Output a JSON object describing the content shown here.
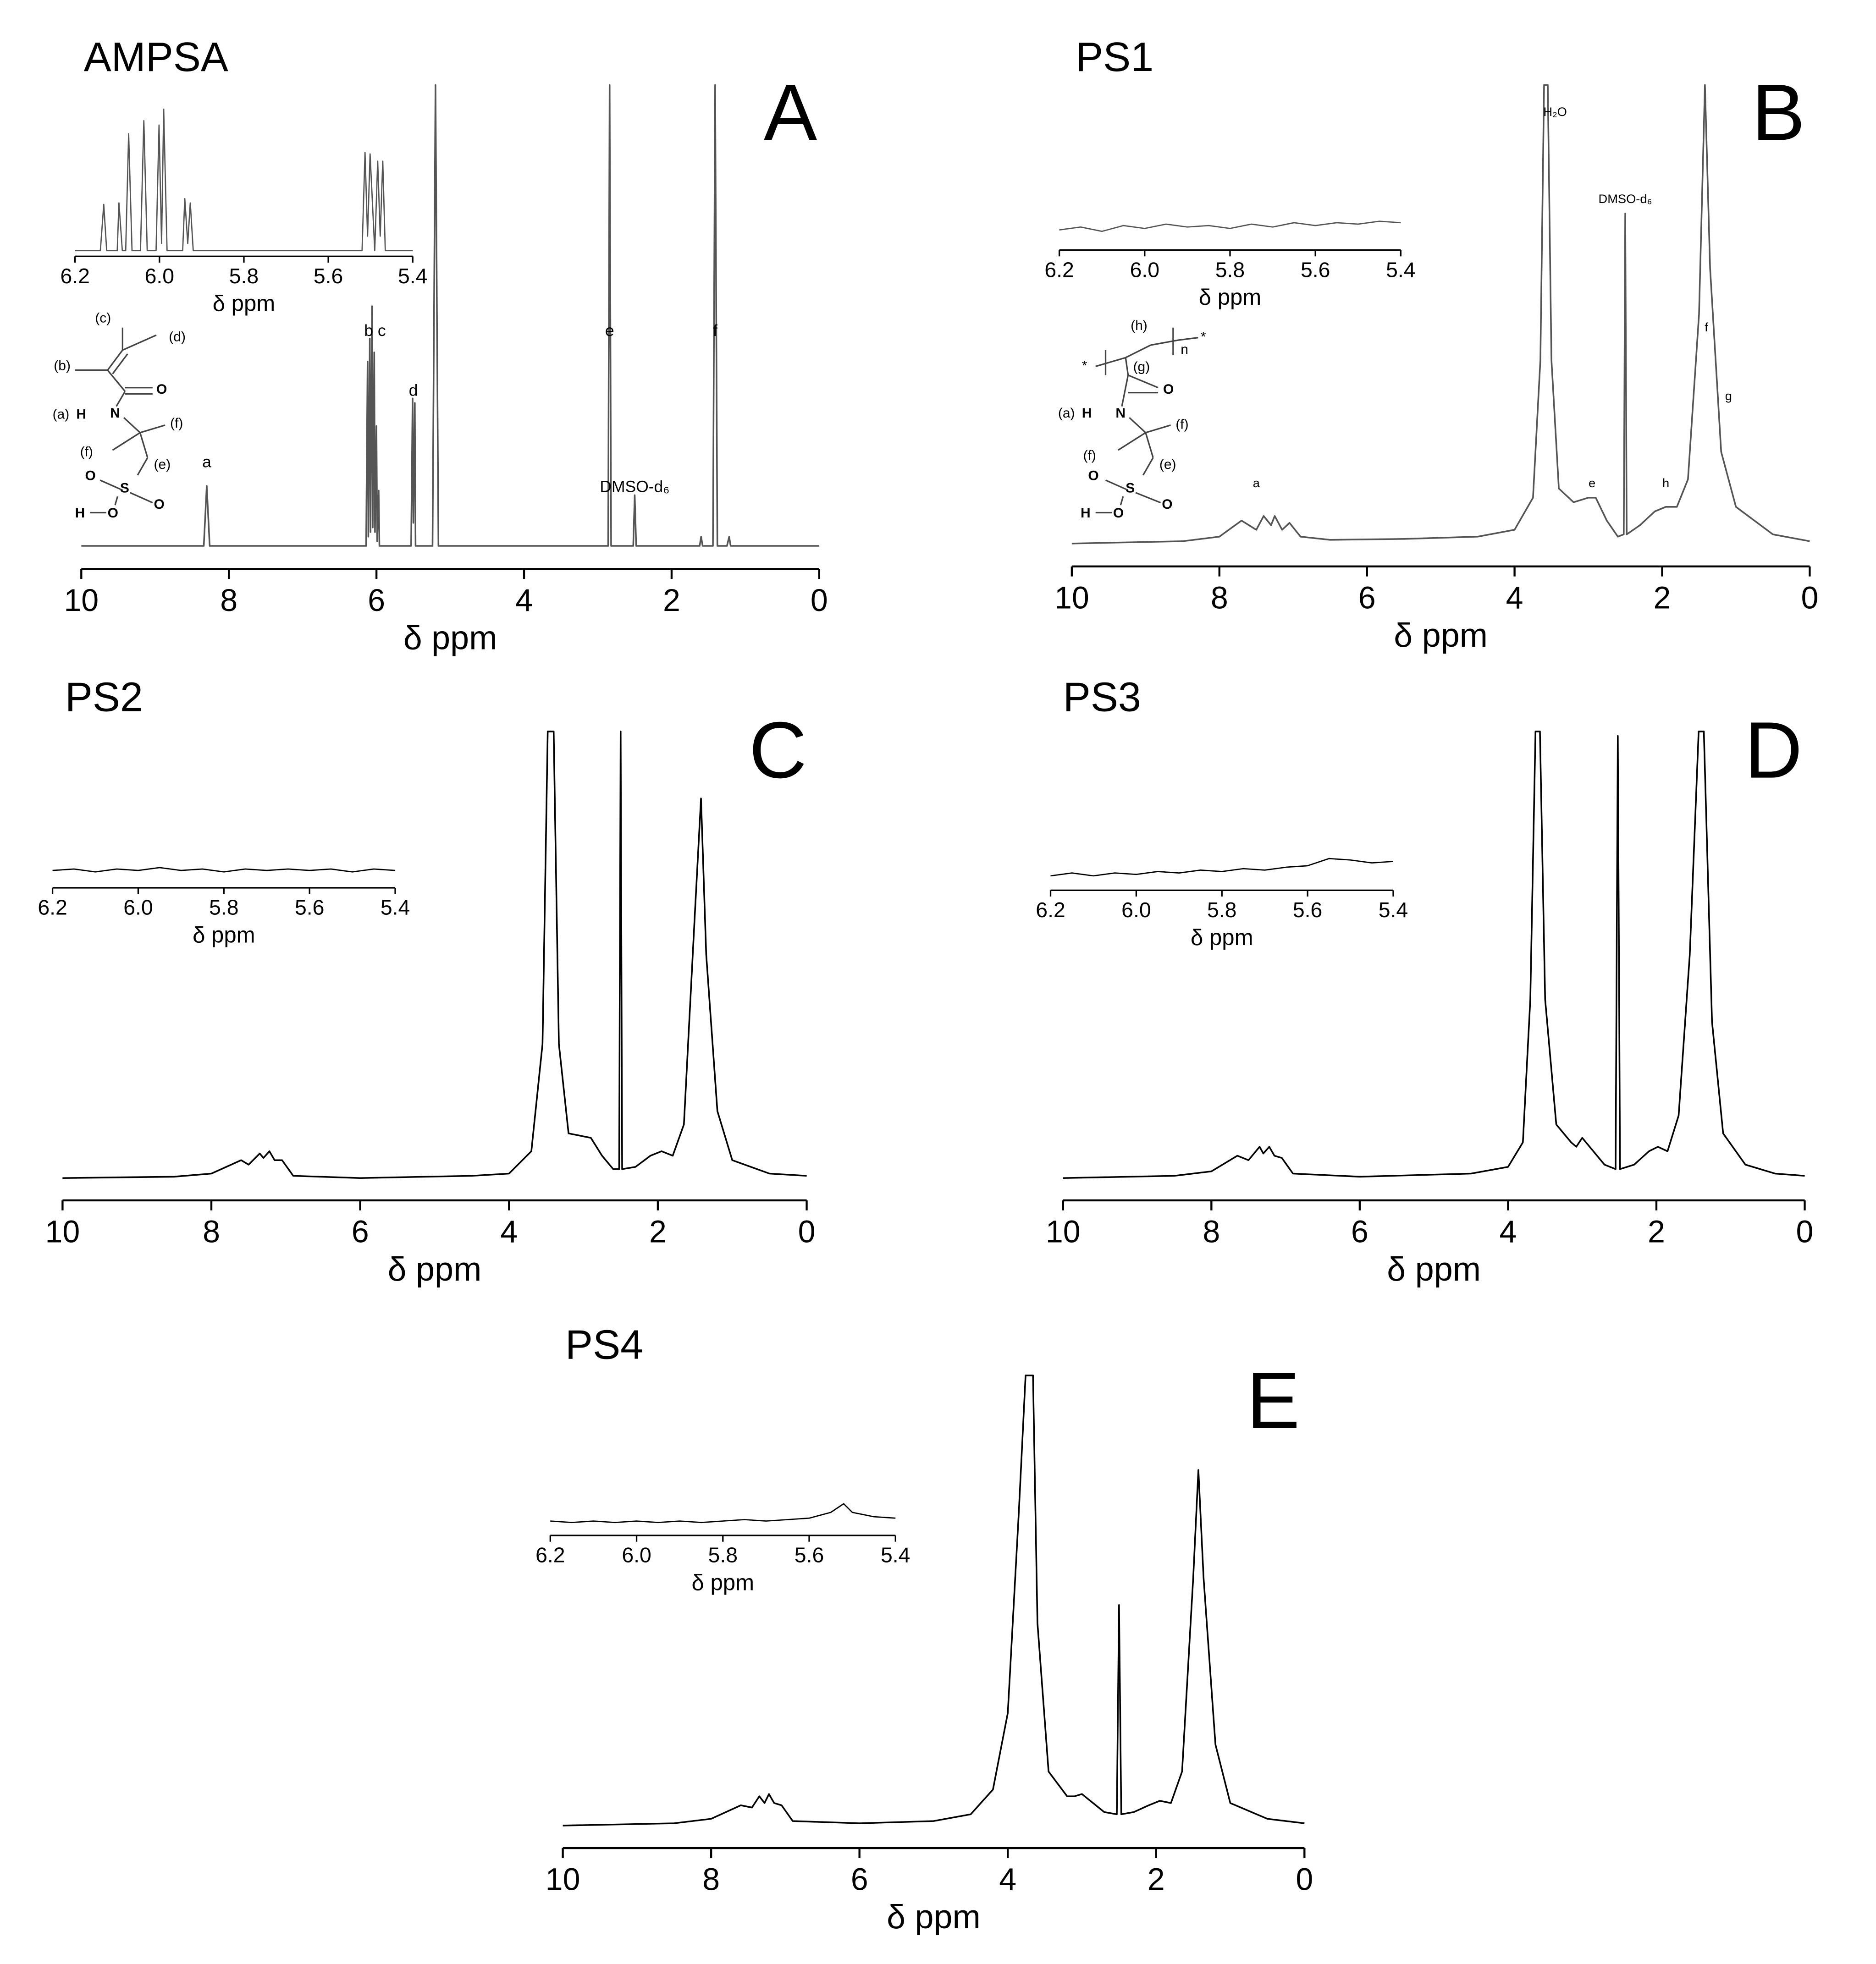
{
  "chart_data": [
    {
      "type": "line",
      "title": "AMPSA",
      "panel": "A",
      "color": "#555555",
      "xlabel": "δ ppm",
      "xlim": [
        10,
        0
      ],
      "xticks": [
        10,
        8,
        6,
        4,
        2,
        0
      ],
      "ylim": [
        -5,
        100
      ],
      "x": [
        10,
        8.34,
        8.3,
        8.26,
        6.14,
        6.12,
        6.11,
        6.09,
        6.08,
        6.06,
        6.05,
        6.03,
        6.02,
        6.0,
        5.99,
        5.97,
        5.96,
        5.53,
        5.51,
        5.5,
        5.48,
        5.47,
        5.24,
        5.2,
        5.16,
        2.86,
        2.84,
        2.82,
        2.52,
        2.5,
        2.48,
        1.62,
        1.6,
        1.58,
        1.44,
        1.41,
        1.38,
        1.25,
        1.22,
        1.2,
        0
      ],
      "values": [
        0,
        0,
        13,
        0,
        0,
        40,
        2,
        45,
        3,
        52,
        4,
        42,
        3,
        26,
        1,
        12,
        0,
        0,
        32,
        5,
        31,
        0,
        0,
        100,
        0,
        0,
        100,
        0,
        0,
        11,
        0,
        0,
        2,
        0,
        0,
        100,
        0,
        0,
        2,
        0,
        0
      ],
      "annotations": [
        {
          "text": "a",
          "x": 8.3,
          "y": 18
        },
        {
          "text": "b c",
          "x": 6.02,
          "y": 46.5
        },
        {
          "text": "d",
          "x": 5.5,
          "y": 33.5
        },
        {
          "text": "e",
          "x": 2.84,
          "y": 46.5
        },
        {
          "text": "f",
          "x": 1.41,
          "y": 46.5
        },
        {
          "text": "DMSO-d₆",
          "x": 2.5,
          "y": 12.6
        }
      ],
      "inset": {
        "xlabel": "δ ppm",
        "xlim": [
          6.2,
          5.4
        ],
        "xticks": [
          6.2,
          {
            "value": 6,
            "label": "6.0"
          },
          5.8,
          5.6,
          5.4
        ],
        "ylim": [
          -4,
          100
        ],
        "x": [
          6.2,
          6.14,
          6.132,
          6.125,
          6.1,
          6.096,
          6.088,
          6.08,
          6.073,
          6.065,
          6.045,
          6.037,
          6.029,
          6.008,
          6.001,
          5.995,
          5.99,
          5.982,
          5.945,
          5.94,
          5.933,
          5.927,
          5.92,
          5.52,
          5.513,
          5.507,
          5.501,
          5.49,
          5.483,
          5.477,
          5.471,
          5.465,
          5.4
        ],
        "values": [
          0,
          0,
          32,
          0,
          0,
          33,
          0,
          0,
          81,
          0,
          0,
          90,
          0,
          0,
          87,
          5,
          98,
          0,
          0,
          36,
          5,
          33,
          0,
          0,
          68,
          10,
          67,
          0,
          62,
          10,
          62,
          0,
          0
        ]
      },
      "structure": [
        "(c)",
        "(d)",
        "(b)",
        "O",
        "(a)",
        "H",
        "N",
        "(f)",
        "(f)",
        "(e)",
        "O",
        "S",
        "O",
        "H",
        "O"
      ]
    },
    {
      "type": "line",
      "title": "PS1",
      "panel": "B",
      "color": "#555555",
      "xlabel": "δ ppm",
      "xlim": [
        10,
        0
      ],
      "xticks": [
        10,
        8,
        6,
        4,
        2,
        0
      ],
      "ylim": [
        -5,
        100
      ],
      "x": [
        10,
        8.5,
        8,
        7.7,
        7.5,
        7.4,
        7.3,
        7.25,
        7.15,
        7.05,
        6.9,
        6.5,
        5.5,
        4.5,
        4,
        3.75,
        3.65,
        3.6,
        3.55,
        3.5,
        3.4,
        3.2,
        3.0,
        2.9,
        2.75,
        2.6,
        2.52,
        2.5,
        2.48,
        2.3,
        2.1,
        1.95,
        1.8,
        1.65,
        1.5,
        1.42,
        1.35,
        1.2,
        1,
        0.5,
        0
      ],
      "values": [
        0,
        0.5,
        1.5,
        5,
        3,
        6,
        4,
        6,
        3,
        4.5,
        1.5,
        0.8,
        1,
        1.5,
        3,
        10,
        40,
        100,
        100,
        40,
        12,
        9,
        10,
        10,
        5,
        1.5,
        2,
        72,
        2,
        4,
        7,
        8,
        8,
        14,
        50,
        100,
        60,
        20,
        8,
        2,
        0.5
      ],
      "annotations": [
        {
          "text": "H₂O",
          "x": 3.45,
          "y": 94
        },
        {
          "text": "DMSO-d₆",
          "x": 2.5,
          "y": 75
        },
        {
          "text": "a",
          "x": 7.5,
          "y": 13
        },
        {
          "text": "e",
          "x": 2.95,
          "y": 13
        },
        {
          "text": "h",
          "x": 1.95,
          "y": 13
        },
        {
          "text": "f",
          "x": 1.4,
          "y": 47
        },
        {
          "text": "g",
          "x": 1.1,
          "y": 32
        }
      ],
      "inset": {
        "xlabel": "δ ppm",
        "xlim": [
          6.2,
          5.4
        ],
        "xticks": [
          6.2,
          {
            "value": 6,
            "label": "6.0"
          },
          5.8,
          5.6,
          5.4
        ],
        "ylim": [
          -4,
          100
        ],
        "x": [
          6.2,
          6.15,
          6.1,
          6.05,
          6.0,
          5.95,
          5.9,
          5.85,
          5.8,
          5.75,
          5.7,
          5.65,
          5.6,
          5.55,
          5.5,
          5.45,
          5.4
        ],
        "values": [
          10,
          12,
          9,
          13,
          11,
          14,
          12,
          13,
          11,
          14,
          12,
          15,
          13,
          15,
          14,
          16,
          15
        ]
      },
      "structure": [
        "*",
        "(h)",
        "n",
        "*",
        "(g)",
        "O",
        "(a)",
        "H",
        "N",
        "(f)",
        "(f)",
        "(e)",
        "O",
        "S",
        "O",
        "H",
        "O"
      ]
    },
    {
      "type": "line",
      "title": "PS2",
      "panel": "C",
      "color": "#000000",
      "xlabel": "δ ppm",
      "xlim": [
        10,
        0
      ],
      "xticks": [
        10,
        8,
        6,
        4,
        2,
        0
      ],
      "ylim": [
        -5,
        100
      ],
      "x": [
        10,
        8.5,
        8,
        7.6,
        7.5,
        7.35,
        7.3,
        7.22,
        7.15,
        7.05,
        6.9,
        6,
        4.5,
        4,
        3.7,
        3.55,
        3.48,
        3.4,
        3.33,
        3.2,
        3.05,
        2.9,
        2.75,
        2.6,
        2.52,
        2.5,
        2.48,
        2.3,
        2.1,
        1.95,
        1.8,
        1.65,
        1.5,
        1.42,
        1.35,
        1.2,
        1,
        0.5,
        0
      ],
      "values": [
        0,
        0.3,
        1,
        4,
        3,
        5.5,
        4.5,
        6,
        4,
        4,
        0.5,
        0,
        0.5,
        1,
        6,
        30,
        100,
        100,
        30,
        10,
        9.5,
        9,
        5,
        2,
        2,
        100,
        2,
        2.5,
        5,
        6,
        5,
        12,
        60,
        85,
        50,
        15,
        4,
        1,
        0.5
      ],
      "inset": {
        "xlabel": "δ ppm",
        "xlim": [
          6.2,
          5.4
        ],
        "xticks": [
          6.2,
          {
            "value": 6,
            "label": "6.0"
          },
          5.8,
          5.6,
          5.4
        ],
        "ylim": [
          -4,
          100
        ],
        "x": [
          6.2,
          6.15,
          6.1,
          6.05,
          6.0,
          5.95,
          5.9,
          5.85,
          5.8,
          5.75,
          5.7,
          5.65,
          5.6,
          5.55,
          5.5,
          5.45,
          5.4
        ],
        "values": [
          8,
          9,
          7,
          9,
          8,
          10,
          8,
          9,
          7,
          9,
          8,
          9,
          8,
          9,
          7,
          9,
          8
        ]
      }
    },
    {
      "type": "line",
      "title": "PS3",
      "panel": "D",
      "color": "#000000",
      "xlabel": "δ ppm",
      "xlim": [
        10,
        0
      ],
      "xticks": [
        10,
        8,
        6,
        4,
        2,
        0
      ],
      "ylim": [
        -5,
        100
      ],
      "x": [
        10,
        8.5,
        8,
        7.65,
        7.5,
        7.35,
        7.3,
        7.22,
        7.15,
        7.05,
        6.9,
        6,
        4.5,
        4,
        3.8,
        3.7,
        3.63,
        3.57,
        3.5,
        3.35,
        3.15,
        3.08,
        3.0,
        2.85,
        2.7,
        2.55,
        2.52,
        2.49,
        2.3,
        2.1,
        1.98,
        1.85,
        1.7,
        1.55,
        1.43,
        1.36,
        1.25,
        1.1,
        0.8,
        0.4,
        0
      ],
      "values": [
        0,
        0.5,
        1.5,
        5,
        4,
        7,
        5.5,
        7,
        5,
        4.5,
        1,
        0.3,
        1,
        2.5,
        8,
        40,
        100,
        100,
        40,
        12,
        8,
        7,
        9,
        6,
        3,
        2,
        99,
        2,
        3,
        6,
        7,
        6,
        14,
        50,
        100,
        100,
        35,
        10,
        3,
        1,
        0.5
      ],
      "inset": {
        "xlabel": "δ ppm",
        "xlim": [
          6.2,
          5.4
        ],
        "xticks": [
          6.2,
          {
            "value": 6,
            "label": "6.0"
          },
          5.8,
          5.6,
          5.4
        ],
        "ylim": [
          -4,
          100
        ],
        "x": [
          6.2,
          6.15,
          6.1,
          6.05,
          6.0,
          5.95,
          5.9,
          5.85,
          5.8,
          5.75,
          5.7,
          5.65,
          5.6,
          5.55,
          5.5,
          5.45,
          5.4
        ],
        "values": [
          6,
          8,
          6,
          8,
          7,
          9,
          8,
          10,
          9,
          11,
          10,
          12,
          13,
          18,
          17,
          15,
          16
        ]
      }
    },
    {
      "type": "line",
      "title": "PS4",
      "panel": "E",
      "color": "#000000",
      "xlabel": "δ ppm",
      "xlim": [
        10,
        0
      ],
      "xticks": [
        10,
        8,
        6,
        4,
        2,
        0
      ],
      "ylim": [
        -5,
        100
      ],
      "x": [
        10,
        8.5,
        8,
        7.6,
        7.45,
        7.35,
        7.28,
        7.22,
        7.15,
        7.05,
        6.9,
        6,
        5,
        4.5,
        4.2,
        4,
        3.85,
        3.76,
        3.66,
        3.6,
        3.45,
        3.2,
        3.1,
        3.0,
        2.85,
        2.7,
        2.53,
        2.5,
        2.47,
        2.3,
        2.1,
        1.95,
        1.8,
        1.65,
        1.5,
        1.43,
        1.36,
        1.2,
        1,
        0.5,
        0
      ],
      "values": [
        0,
        0.5,
        1.5,
        4.5,
        4,
        6.5,
        5,
        7,
        5,
        4.5,
        1,
        0.5,
        1,
        2.5,
        8,
        25,
        70,
        100,
        100,
        45,
        12,
        6.5,
        6.5,
        7,
        5,
        3,
        2.5,
        49,
        2.5,
        3,
        4.5,
        5.5,
        5,
        12,
        55,
        79,
        55,
        18,
        5,
        1.5,
        0.5
      ],
      "inset": {
        "xlabel": "δ ppm",
        "xlim": [
          6.2,
          5.4
        ],
        "xticks": [
          6.2,
          {
            "value": 6,
            "label": "6.0"
          },
          5.8,
          5.6,
          5.4
        ],
        "ylim": [
          -4,
          100
        ],
        "x": [
          6.2,
          6.15,
          6.1,
          6.05,
          6.0,
          5.95,
          5.9,
          5.85,
          5.8,
          5.75,
          5.7,
          5.65,
          5.6,
          5.55,
          5.52,
          5.5,
          5.45,
          5.4
        ],
        "values": [
          6,
          5,
          6,
          5,
          6,
          5,
          6,
          5,
          6,
          7,
          6,
          7,
          8,
          12,
          18,
          12,
          9,
          8
        ]
      }
    }
  ]
}
